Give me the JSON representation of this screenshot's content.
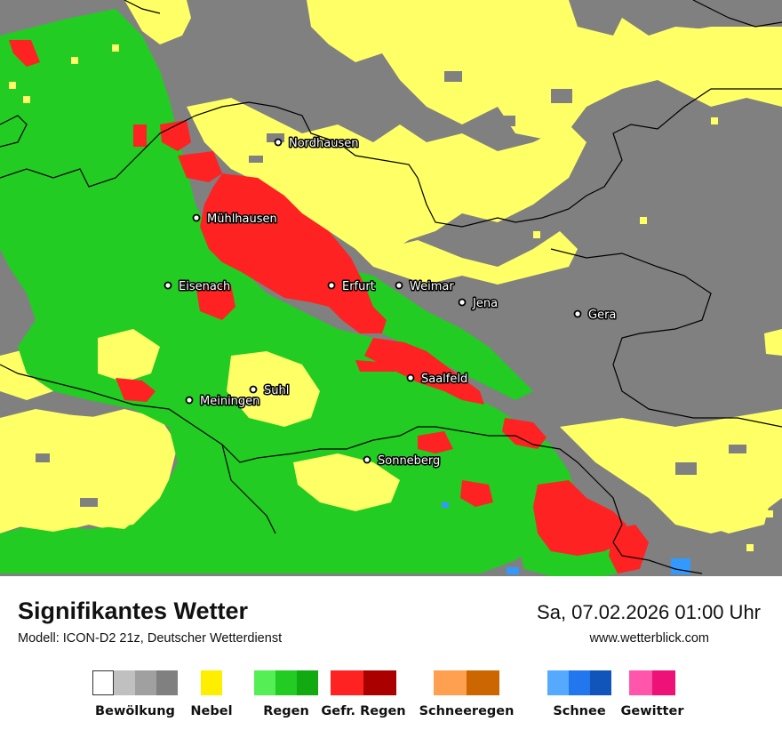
{
  "map": {
    "colors": {
      "cloud": "#808080",
      "fog": "#ffff66",
      "rain": "#22cc22",
      "freezing_rain": "#ff2222",
      "snow": "#3399ff",
      "border": "#000000"
    },
    "cities": [
      {
        "name": "Nordhausen"
      },
      {
        "name": "Mühlhausen"
      },
      {
        "name": "Eisenach"
      },
      {
        "name": "Erfurt"
      },
      {
        "name": "Weimar"
      },
      {
        "name": "Jena"
      },
      {
        "name": "Gera"
      },
      {
        "name": "Saalfeld"
      },
      {
        "name": "Suhl"
      },
      {
        "name": "Meiningen"
      },
      {
        "name": "Sonneberg"
      }
    ]
  },
  "footer": {
    "title": "Signifikantes Wetter",
    "model": "Modell: ICON-D2 21z, Deutscher Wetterdienst",
    "datetime": "Sa, 07.02.2026 01:00 Uhr",
    "website": "www.wetterblick.com"
  },
  "legend": [
    {
      "label": "Bewölkung",
      "colors": [
        "#ffffff",
        "#c0c0c0",
        "#a0a0a0",
        "#808080"
      ]
    },
    {
      "label": "Nebel",
      "colors": [
        "#ffee00"
      ]
    },
    {
      "label": "Regen",
      "colors": [
        "#55ee55",
        "#22cc22",
        "#11aa11"
      ]
    },
    {
      "label": "Gefr. Regen",
      "colors": [
        "#ff2222",
        "#aa0000"
      ]
    },
    {
      "label": "Schneeregen",
      "colors": [
        "#ffa050",
        "#cc6600"
      ]
    },
    {
      "label": "Schnee",
      "colors": [
        "#55aaff",
        "#2277ee",
        "#1155bb"
      ]
    },
    {
      "label": "Gewitter",
      "colors": [
        "#ff55aa",
        "#ee1177"
      ]
    }
  ]
}
